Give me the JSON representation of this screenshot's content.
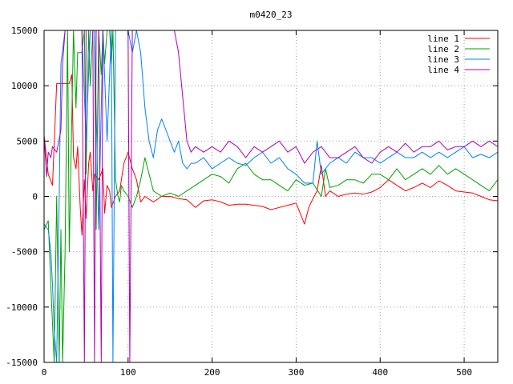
{
  "chart_data": {
    "type": "line",
    "title": "m0420_23",
    "xlabel": "",
    "ylabel": "",
    "xlim": [
      0,
      540
    ],
    "ylim": [
      -15000,
      15000
    ],
    "x_ticks": [
      0,
      100,
      200,
      300,
      400,
      500
    ],
    "y_ticks": [
      -15000,
      -10000,
      -5000,
      0,
      5000,
      10000,
      15000
    ],
    "x_tick_labels": [
      "0",
      "100",
      "200",
      "300",
      "400",
      "500"
    ],
    "y_tick_labels": [
      "-15000",
      "-10000",
      "-5000",
      "0",
      "5000",
      "10000",
      "15000"
    ],
    "grid": true,
    "legend_position": "top-right",
    "series": [
      {
        "name": "line 1",
        "color": "#ff0000",
        "x": [
          0,
          5,
          10,
          15,
          20,
          25,
          30,
          33,
          35,
          38,
          40,
          43,
          45,
          48,
          50,
          53,
          55,
          58,
          60,
          65,
          70,
          72,
          75,
          78,
          80,
          85,
          90,
          95,
          100,
          105,
          110,
          115,
          120,
          130,
          140,
          150,
          160,
          170,
          180,
          190,
          200,
          210,
          220,
          230,
          240,
          250,
          260,
          270,
          280,
          290,
          300,
          310,
          315,
          320,
          325,
          330,
          335,
          340,
          350,
          360,
          370,
          380,
          390,
          400,
          410,
          420,
          430,
          440,
          450,
          460,
          470,
          480,
          490,
          500,
          510,
          520,
          530,
          540
        ],
        "y": [
          5500,
          2000,
          1000,
          10200,
          10200,
          10200,
          10200,
          11000,
          3500,
          2500,
          4500,
          -1000,
          -3500,
          1500,
          -2000,
          3000,
          4000,
          500,
          2000,
          1500,
          2500,
          -1500,
          1000,
          500,
          -1000,
          0,
          500,
          3000,
          4000,
          2500,
          1500,
          -500,
          0,
          -500,
          0,
          0,
          -200,
          -300,
          -1000,
          -400,
          -300,
          -500,
          -800,
          -700,
          -700,
          -800,
          -900,
          -1200,
          -1000,
          -800,
          -600,
          -2500,
          -1000,
          -200,
          500,
          2800,
          0,
          500,
          0,
          200,
          300,
          200,
          400,
          800,
          1500,
          1000,
          500,
          800,
          1200,
          800,
          1400,
          1000,
          500,
          400,
          300,
          0,
          -300,
          -400
        ]
      },
      {
        "name": "line 2",
        "color": "#00a000",
        "x": [
          0,
          5,
          8,
          12,
          15,
          18,
          20,
          22,
          25,
          28,
          30,
          32,
          35,
          38,
          40,
          42,
          45,
          48,
          50,
          53,
          55,
          58,
          60,
          62,
          65,
          68,
          70,
          72,
          75,
          78,
          80,
          82,
          85,
          88,
          90,
          92,
          95,
          100,
          105,
          110,
          115,
          120,
          125,
          130,
          140,
          150,
          160,
          170,
          180,
          190,
          200,
          210,
          220,
          230,
          240,
          250,
          260,
          270,
          280,
          290,
          300,
          310,
          320,
          330,
          335,
          340,
          350,
          360,
          370,
          380,
          390,
          400,
          410,
          420,
          430,
          440,
          450,
          460,
          470,
          480,
          490,
          500,
          510,
          520,
          530,
          540
        ],
        "y": [
          -3000,
          -2200,
          -8000,
          -15000,
          0,
          -15000,
          -3000,
          -15000,
          -5000,
          15000,
          -5000,
          3000,
          15000,
          8000,
          13000,
          13000,
          13000,
          15000,
          2000,
          15000,
          10000,
          15000,
          15000,
          -3000,
          15000,
          11000,
          15000,
          12000,
          15000,
          15000,
          12000,
          15000,
          1500,
          0,
          -500,
          1000,
          500,
          0,
          -1000,
          0,
          1500,
          3500,
          2000,
          500,
          0,
          300,
          0,
          500,
          1000,
          1500,
          2000,
          1800,
          1200,
          2500,
          3000,
          2000,
          1500,
          1500,
          1000,
          500,
          1500,
          1000,
          1200,
          0,
          2500,
          800,
          1000,
          1500,
          1500,
          1200,
          2000,
          2000,
          1500,
          2500,
          1500,
          2000,
          2500,
          2000,
          2800,
          2000,
          2500,
          2000,
          1500,
          1000,
          500,
          1500
        ]
      },
      {
        "name": "line 3",
        "color": "#0080ff",
        "x": [
          0,
          5,
          8,
          10,
          12,
          15,
          18,
          20,
          25,
          28,
          30,
          35,
          40,
          45,
          50,
          55,
          60,
          65,
          70,
          75,
          80,
          82,
          85,
          88,
          90,
          95,
          100,
          105,
          110,
          115,
          120,
          125,
          130,
          135,
          140,
          145,
          150,
          155,
          160,
          165,
          170,
          175,
          180,
          190,
          200,
          210,
          220,
          230,
          240,
          250,
          260,
          270,
          280,
          290,
          300,
          310,
          320,
          325,
          330,
          335,
          340,
          350,
          360,
          370,
          380,
          390,
          400,
          410,
          420,
          430,
          440,
          450,
          460,
          470,
          480,
          490,
          500,
          510,
          520,
          530,
          540
        ],
        "y": [
          -2500,
          -3000,
          -5000,
          -8000,
          -12000,
          -15000,
          0,
          12000,
          15000,
          15000,
          15000,
          15000,
          15000,
          15000,
          5000,
          15000,
          15000,
          -3000,
          15000,
          5000,
          15000,
          -15000,
          15000,
          15000,
          15000,
          15000,
          15000,
          13000,
          15000,
          13000,
          8000,
          5000,
          3500,
          6000,
          7000,
          6000,
          5000,
          4000,
          5000,
          3000,
          2500,
          3000,
          3000,
          3500,
          2500,
          3000,
          3500,
          3000,
          2800,
          3500,
          4000,
          3000,
          3500,
          2500,
          2000,
          1200,
          1200,
          5000,
          2000,
          2500,
          3000,
          3500,
          3000,
          4000,
          3500,
          3500,
          3000,
          3500,
          4000,
          3500,
          3500,
          4000,
          3500,
          4000,
          3500,
          4000,
          4500,
          3500,
          3800,
          3500,
          4000
        ]
      },
      {
        "name": "line 4",
        "color": "#b000b0",
        "x": [
          0,
          3,
          5,
          8,
          10,
          15,
          20,
          22,
          25,
          28,
          30,
          35,
          40,
          45,
          48,
          50,
          52,
          55,
          58,
          60,
          62,
          65,
          68,
          70,
          75,
          80,
          85,
          90,
          95,
          100,
          102,
          105,
          110,
          115,
          120,
          125,
          130,
          135,
          140,
          145,
          150,
          155,
          160,
          165,
          170,
          175,
          180,
          190,
          200,
          210,
          220,
          230,
          240,
          250,
          260,
          270,
          280,
          290,
          300,
          310,
          320,
          330,
          340,
          350,
          360,
          370,
          380,
          390,
          400,
          410,
          420,
          430,
          440,
          450,
          460,
          470,
          480,
          490,
          500,
          510,
          520,
          530,
          540
        ],
        "y": [
          5500,
          1800,
          4000,
          3500,
          4500,
          4000,
          6000,
          12000,
          15000,
          15000,
          15000,
          15000,
          15000,
          15000,
          -15000,
          15000,
          15000,
          15000,
          15000,
          -15000,
          15000,
          15000,
          -15000,
          15000,
          15000,
          15000,
          15000,
          15000,
          15000,
          15000,
          -15000,
          15000,
          15000,
          15000,
          15000,
          15000,
          15000,
          15000,
          15000,
          15000,
          15000,
          15000,
          13000,
          9000,
          5000,
          4000,
          4500,
          4000,
          4500,
          4000,
          5000,
          4500,
          3500,
          4500,
          4000,
          4500,
          5000,
          4000,
          4500,
          3000,
          4000,
          4500,
          3500,
          3500,
          4000,
          4500,
          3500,
          3000,
          4000,
          4500,
          4000,
          4800,
          4000,
          4500,
          4500,
          5000,
          4200,
          4500,
          4500,
          5000,
          4500,
          5000,
          4500
        ]
      }
    ]
  }
}
